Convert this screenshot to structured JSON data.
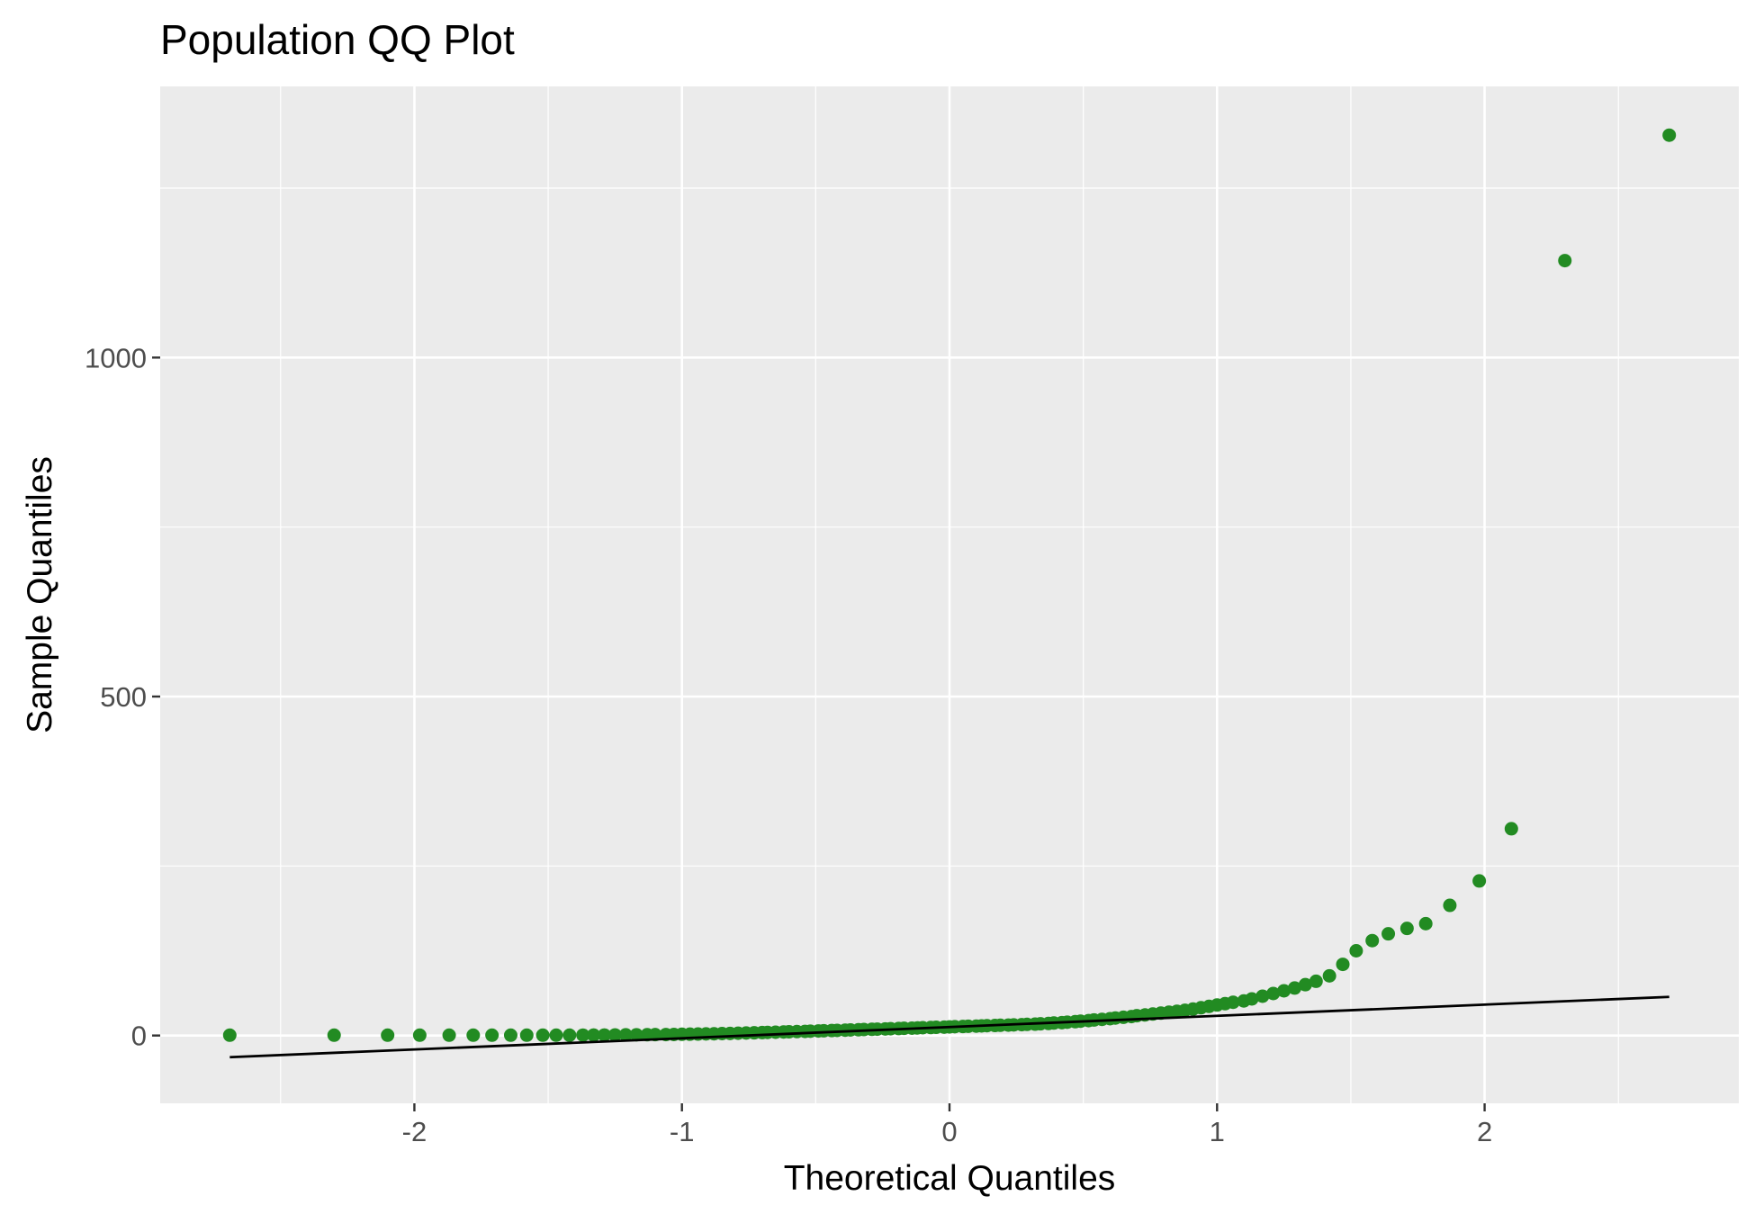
{
  "chart_data": {
    "type": "scatter",
    "title": "Population QQ Plot",
    "xlabel": "Theoretical Quantiles",
    "ylabel": "Sample Quantiles",
    "xlim": [
      -2.95,
      2.95
    ],
    "ylim": [
      -100,
      1400
    ],
    "x_ticks": [
      -2,
      -1,
      0,
      1,
      2
    ],
    "x_tick_labels": [
      "-2",
      "-1",
      "0",
      "1",
      "2"
    ],
    "y_ticks": [
      0,
      500,
      1000
    ],
    "y_tick_labels": [
      "0",
      "500",
      "1000"
    ],
    "grid": true,
    "colors": {
      "points": "#228B22",
      "line": "#000000",
      "panel": "#EBEBEB",
      "grid": "#FFFFFF"
    },
    "series": [
      {
        "points": [
          [
            -2.69,
            0.5
          ],
          [
            -2.3,
            0.5
          ],
          [
            -2.1,
            0.5
          ],
          [
            -1.98,
            0.5
          ],
          [
            -1.87,
            0.5
          ],
          [
            -1.78,
            0.5
          ],
          [
            -1.71,
            0.5
          ],
          [
            -1.64,
            0.5
          ],
          [
            -1.58,
            0.5
          ],
          [
            -1.52,
            0.5
          ],
          [
            -1.47,
            0.5
          ],
          [
            -1.42,
            0.5
          ],
          [
            -1.37,
            0.6
          ],
          [
            -1.33,
            0.7
          ],
          [
            -1.29,
            0.8
          ],
          [
            -1.25,
            0.9
          ],
          [
            -1.21,
            1.0
          ],
          [
            -1.17,
            1.1
          ],
          [
            -1.13,
            1.2
          ],
          [
            -1.1,
            1.3
          ],
          [
            -1.06,
            1.4
          ],
          [
            -1.03,
            1.6
          ],
          [
            -1.0,
            1.8
          ],
          [
            -0.97,
            2.0
          ],
          [
            -0.94,
            2.2
          ],
          [
            -0.91,
            2.4
          ],
          [
            -0.88,
            2.6
          ],
          [
            -0.85,
            2.9
          ],
          [
            -0.82,
            3.1
          ],
          [
            -0.79,
            3.4
          ],
          [
            -0.76,
            3.7
          ],
          [
            -0.73,
            4.0
          ],
          [
            -0.7,
            4.3
          ],
          [
            -0.68,
            4.6
          ],
          [
            -0.65,
            4.9
          ],
          [
            -0.62,
            5.2
          ],
          [
            -0.6,
            5.5
          ],
          [
            -0.57,
            5.8
          ],
          [
            -0.54,
            6.1
          ],
          [
            -0.52,
            6.4
          ],
          [
            -0.49,
            6.7
          ],
          [
            -0.47,
            7.0
          ],
          [
            -0.44,
            7.3
          ],
          [
            -0.42,
            7.6
          ],
          [
            -0.39,
            7.9
          ],
          [
            -0.37,
            8.2
          ],
          [
            -0.34,
            8.5
          ],
          [
            -0.32,
            8.8
          ],
          [
            -0.29,
            9.1
          ],
          [
            -0.27,
            9.4
          ],
          [
            -0.24,
            9.7
          ],
          [
            -0.22,
            10.0
          ],
          [
            -0.19,
            10.3
          ],
          [
            -0.17,
            10.6
          ],
          [
            -0.14,
            10.9
          ],
          [
            -0.12,
            11.2
          ],
          [
            -0.1,
            11.5
          ],
          [
            -0.07,
            11.8
          ],
          [
            -0.05,
            12.1
          ],
          [
            -0.02,
            12.4
          ],
          [
            0.0,
            12.7
          ],
          [
            0.02,
            13.0
          ],
          [
            0.05,
            13.3
          ],
          [
            0.07,
            13.6
          ],
          [
            0.1,
            13.9
          ],
          [
            0.12,
            14.2
          ],
          [
            0.14,
            14.5
          ],
          [
            0.17,
            14.8
          ],
          [
            0.19,
            15.1
          ],
          [
            0.22,
            15.4
          ],
          [
            0.24,
            15.7
          ],
          [
            0.27,
            16.0
          ],
          [
            0.29,
            16.4
          ],
          [
            0.32,
            16.8
          ],
          [
            0.34,
            17.3
          ],
          [
            0.37,
            17.8
          ],
          [
            0.39,
            18.4
          ],
          [
            0.42,
            19.0
          ],
          [
            0.44,
            19.7
          ],
          [
            0.47,
            20.4
          ],
          [
            0.49,
            21.2
          ],
          [
            0.52,
            22.0
          ],
          [
            0.54,
            22.9
          ],
          [
            0.57,
            23.8
          ],
          [
            0.6,
            24.8
          ],
          [
            0.62,
            25.8
          ],
          [
            0.65,
            26.9
          ],
          [
            0.68,
            28.0
          ],
          [
            0.7,
            29.2
          ],
          [
            0.73,
            30.4
          ],
          [
            0.76,
            31.7
          ],
          [
            0.79,
            33.0
          ],
          [
            0.82,
            34.4
          ],
          [
            0.85,
            35.8
          ],
          [
            0.88,
            37.3
          ],
          [
            0.91,
            39.0
          ],
          [
            0.94,
            41.0
          ],
          [
            0.97,
            43.0
          ],
          [
            1.0,
            45.0
          ],
          [
            1.03,
            47.0
          ],
          [
            1.06,
            49.0
          ],
          [
            1.1,
            51.0
          ],
          [
            1.13,
            54.0
          ],
          [
            1.17,
            58.0
          ],
          [
            1.21,
            62.0
          ],
          [
            1.25,
            66.0
          ],
          [
            1.29,
            70.0
          ],
          [
            1.33,
            75.0
          ],
          [
            1.37,
            80.0
          ],
          [
            1.42,
            88.0
          ],
          [
            1.47,
            105.0
          ],
          [
            1.52,
            125.0
          ],
          [
            1.58,
            140.0
          ],
          [
            1.64,
            150.0
          ],
          [
            1.71,
            158.0
          ],
          [
            1.78,
            165.0
          ],
          [
            1.87,
            192.0
          ],
          [
            1.98,
            228.0
          ],
          [
            2.1,
            305.0
          ],
          [
            2.3,
            1143.0
          ],
          [
            2.69,
            1328.0
          ]
        ]
      }
    ],
    "reference_line": {
      "x": [
        -2.69,
        2.69
      ],
      "y": [
        -32.0,
        57.0
      ]
    }
  }
}
